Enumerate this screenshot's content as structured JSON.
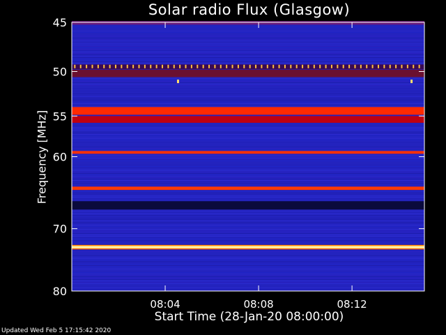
{
  "chart_data": {
    "type": "heatmap",
    "title": "Solar radio Flux (Glasgow)",
    "xlabel": "Start Time (28-Jan-20 08:00:00)",
    "ylabel": "Frequency [MHz]",
    "x_range_minutes": [
      0,
      15.1
    ],
    "xticks": [
      {
        "minute": 4,
        "label": "08:04"
      },
      {
        "minute": 8,
        "label": "08:08"
      },
      {
        "minute": 12,
        "label": "08:12"
      }
    ],
    "ylim": [
      45,
      80
    ],
    "y_reversed": true,
    "y_scale": "log",
    "yticks": [
      {
        "mhz": 45,
        "label": "45"
      },
      {
        "mhz": 50,
        "label": "50"
      },
      {
        "mhz": 55,
        "label": "55"
      },
      {
        "mhz": 60,
        "label": "60"
      },
      {
        "mhz": 70,
        "label": "70"
      },
      {
        "mhz": 80,
        "label": "80"
      }
    ],
    "bands": [
      {
        "mhz": 45.05,
        "width_mhz": 0.35,
        "color": "#6a1a7a"
      },
      {
        "mhz": 49.5,
        "width_mhz": 0.5,
        "color": "#3a0a50"
      },
      {
        "mhz": 50.2,
        "width_mhz": 0.8,
        "color": "#6a1030"
      },
      {
        "mhz": 54.4,
        "width_mhz": 0.9,
        "color": "#ff2a00"
      },
      {
        "mhz": 55.4,
        "width_mhz": 0.8,
        "color": "#c00010"
      },
      {
        "mhz": 59.45,
        "width_mhz": 0.35,
        "color": "#ff3000"
      },
      {
        "mhz": 64.2,
        "width_mhz": 0.45,
        "color": "#ff3a00"
      },
      {
        "mhz": 66.6,
        "width_mhz": 1.2,
        "color": "#0a0a3c"
      },
      {
        "mhz": 72.8,
        "width_mhz": 0.5,
        "color": "#fff0a0"
      }
    ],
    "spike_row_mhz": 49.5,
    "spike_interval_minutes": 0.25,
    "spike_color": "#ffc040",
    "isolated_bursts": [
      {
        "minute": 4.55,
        "mhz": 51.1
      },
      {
        "minute": 14.55,
        "mhz": 51.1
      }
    ],
    "colors": {
      "background": "#2424c0",
      "axes": "#ffffff"
    }
  },
  "footer": {
    "updated": "Updated Wed Feb  5 17:15:42 2020"
  }
}
